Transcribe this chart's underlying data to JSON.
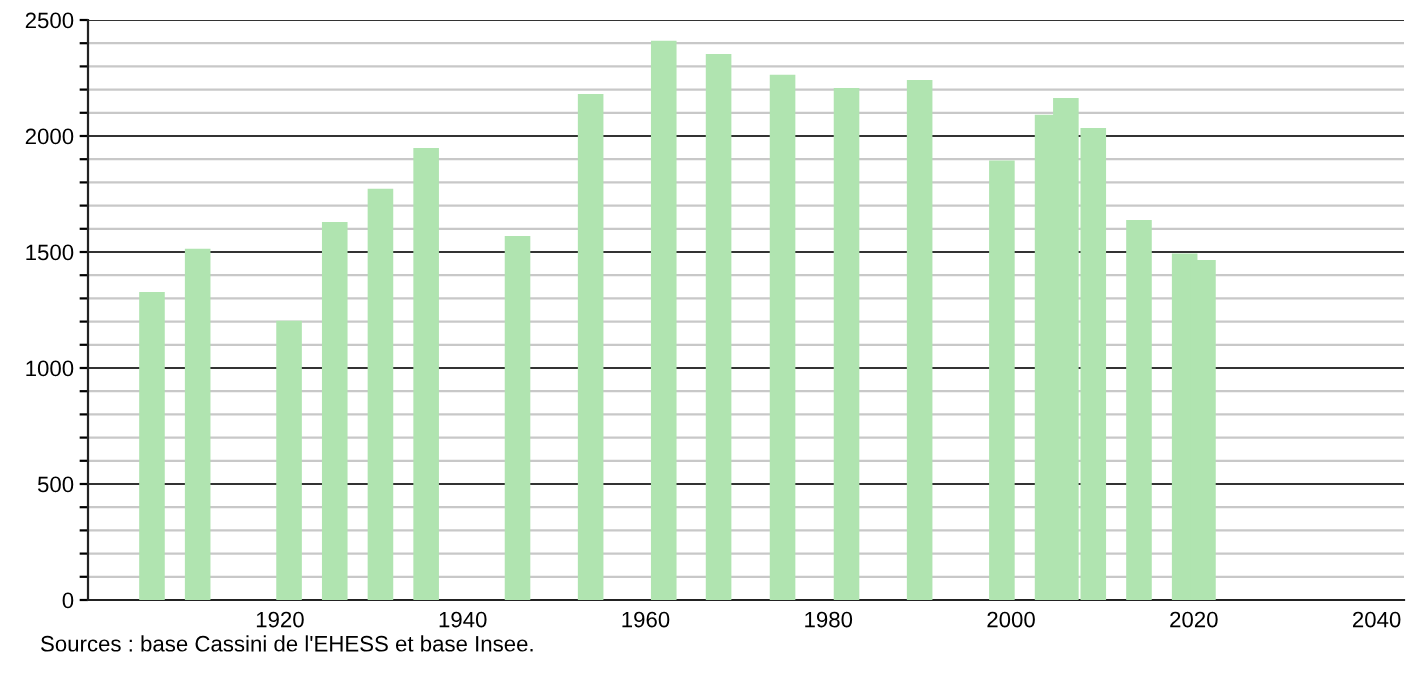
{
  "chart_data": {
    "type": "bar",
    "x": [
      1906,
      1911,
      1921,
      1926,
      1931,
      1936,
      1946,
      1954,
      1962,
      1968,
      1975,
      1982,
      1990,
      1999,
      2004,
      2006,
      2009,
      2014,
      2019,
      2021
    ],
    "values": [
      1328,
      1514,
      1204,
      1629,
      1773,
      1948,
      1569,
      2181,
      2411,
      2353,
      2264,
      2207,
      2241,
      1894,
      2092,
      2164,
      2034,
      1638,
      1494,
      1466
    ],
    "color": "#b0e4b0",
    "xlim": [
      1899,
      2043
    ],
    "xticks": [
      1920,
      1940,
      1960,
      1980,
      2000,
      2020,
      2040
    ],
    "ylim": [
      0,
      2500
    ],
    "yticks": [
      0,
      {
        "value": 100,
        "label": null
      },
      {
        "value": 200,
        "label": null
      },
      {
        "value": 300,
        "label": null
      },
      {
        "value": 400,
        "label": null
      },
      500,
      {
        "value": 600,
        "label": null
      },
      {
        "value": 700,
        "label": null
      },
      {
        "value": 800,
        "label": null
      },
      {
        "value": 900,
        "label": null
      },
      1000,
      {
        "value": 1100,
        "label": null
      },
      {
        "value": 1200,
        "label": null
      },
      {
        "value": 1300,
        "label": null
      },
      {
        "value": 1400,
        "label": null
      },
      1500,
      {
        "value": 1600,
        "label": null
      },
      {
        "value": 1700,
        "label": null
      },
      {
        "value": 1800,
        "label": null
      },
      {
        "value": 1900,
        "label": null
      },
      2000,
      {
        "value": 2100,
        "label": null
      },
      {
        "value": 2200,
        "label": null
      },
      {
        "value": 2300,
        "label": null
      },
      {
        "value": 2400,
        "label": null
      },
      2500
    ],
    "grid": "y",
    "annotations": [
      "Sources : base Cassini de l'EHESS et base Insee."
    ]
  }
}
